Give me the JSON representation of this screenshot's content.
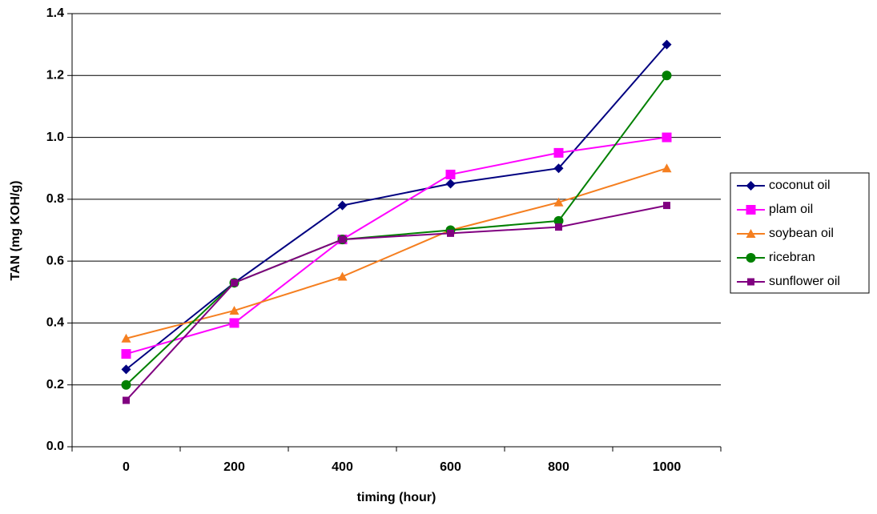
{
  "chart_data": {
    "type": "line",
    "x_label": "timing (hour)",
    "y_label": "TAN (mg KOH/g)",
    "categories": [
      "0",
      "200",
      "400",
      "600",
      "800",
      "1000"
    ],
    "ylim": [
      0,
      1.4
    ],
    "yticks": [
      {
        "value": 0,
        "label": "0.0"
      },
      0.2,
      0.4,
      0.6,
      0.8,
      {
        "value": 1,
        "label": "1.0"
      },
      1.2,
      1.4
    ],
    "grid": true,
    "legend": "right",
    "series": [
      {
        "name": "coconut oil",
        "color": "#000080",
        "marker": "diamond",
        "values": [
          0.25,
          0.53,
          0.78,
          0.85,
          0.9,
          1.3
        ]
      },
      {
        "name": "plam oil",
        "color": "#ff00ff",
        "marker": "square",
        "values": [
          0.3,
          0.4,
          0.67,
          0.88,
          0.95,
          1.0
        ]
      },
      {
        "name": "soybean oil",
        "color": "#f57f20",
        "marker": "triangle",
        "values": [
          0.35,
          0.44,
          0.55,
          0.7,
          0.79,
          0.9
        ]
      },
      {
        "name": "ricebran",
        "color": "#008000",
        "marker": "circle",
        "values": [
          0.2,
          0.53,
          0.67,
          0.7,
          0.73,
          1.2
        ]
      },
      {
        "name": "sunflower oil",
        "color": "#800080",
        "marker": "small-square",
        "values": [
          0.15,
          0.53,
          0.67,
          0.69,
          0.71,
          0.78
        ]
      }
    ]
  }
}
